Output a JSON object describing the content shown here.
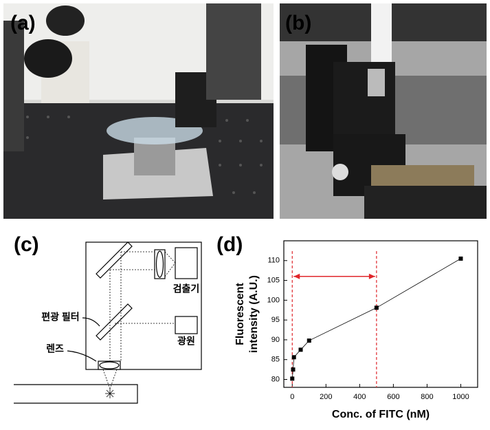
{
  "panels": {
    "a": {
      "label": "(a)"
    },
    "b": {
      "label": "(b)"
    }
  },
  "diagram": {
    "label": "(c)",
    "detector": "검출기",
    "source": "광원",
    "filter": "편광 필터",
    "lens": "렌즈"
  },
  "chart_data": {
    "type": "line",
    "panel_label": "(d)",
    "xlabel": "Conc. of FITC (nM)",
    "ylabel": [
      "Fluorescent",
      "intensity (A.U.)"
    ],
    "x": [
      0,
      5,
      10,
      50,
      100,
      500,
      1000
    ],
    "series": [
      {
        "color": "#000000",
        "values": [
          80.2,
          82.5,
          85.6,
          87.5,
          89.8,
          98.1,
          110.5
        ]
      }
    ],
    "xlim": [
      -50,
      1100
    ],
    "ylim": [
      78,
      115
    ],
    "xticks": [
      0,
      200,
      400,
      600,
      800,
      1000
    ],
    "yticks": [
      80,
      85,
      90,
      95,
      100,
      105,
      110
    ],
    "highlight": {
      "x": [
        0,
        500
      ],
      "y": 106,
      "color": "#e0262b"
    }
  }
}
